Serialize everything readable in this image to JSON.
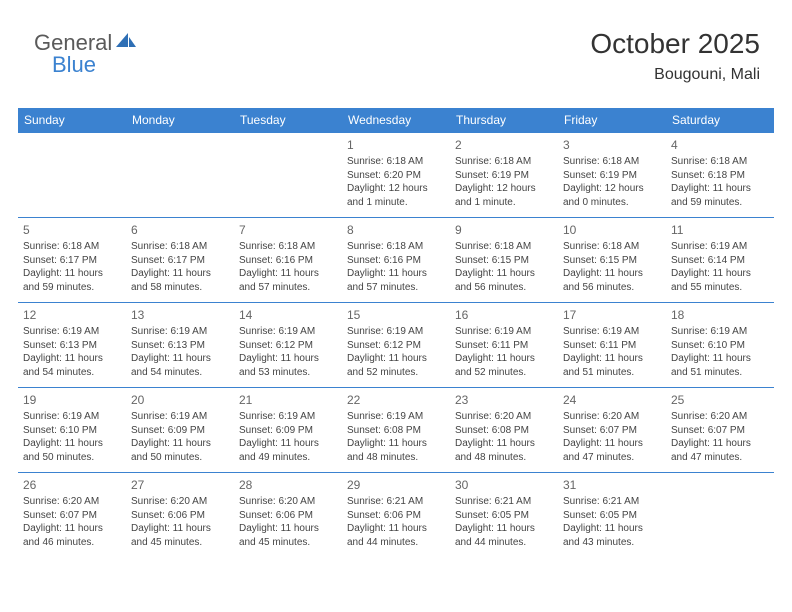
{
  "logo": {
    "part1": "General",
    "part2": "Blue"
  },
  "title": "October 2025",
  "location": "Bougouni, Mali",
  "colors": {
    "header_bg": "#3b82d0",
    "header_text": "#ffffff",
    "rule": "#3b82d0",
    "text": "#444444",
    "daynum": "#666666",
    "background": "#ffffff"
  },
  "dayNames": [
    "Sunday",
    "Monday",
    "Tuesday",
    "Wednesday",
    "Thursday",
    "Friday",
    "Saturday"
  ],
  "weeks": [
    [
      null,
      null,
      null,
      {
        "n": "1",
        "sunrise": "6:18 AM",
        "sunset": "6:20 PM",
        "daylight": "12 hours and 1 minute."
      },
      {
        "n": "2",
        "sunrise": "6:18 AM",
        "sunset": "6:19 PM",
        "daylight": "12 hours and 1 minute."
      },
      {
        "n": "3",
        "sunrise": "6:18 AM",
        "sunset": "6:19 PM",
        "daylight": "12 hours and 0 minutes."
      },
      {
        "n": "4",
        "sunrise": "6:18 AM",
        "sunset": "6:18 PM",
        "daylight": "11 hours and 59 minutes."
      }
    ],
    [
      {
        "n": "5",
        "sunrise": "6:18 AM",
        "sunset": "6:17 PM",
        "daylight": "11 hours and 59 minutes."
      },
      {
        "n": "6",
        "sunrise": "6:18 AM",
        "sunset": "6:17 PM",
        "daylight": "11 hours and 58 minutes."
      },
      {
        "n": "7",
        "sunrise": "6:18 AM",
        "sunset": "6:16 PM",
        "daylight": "11 hours and 57 minutes."
      },
      {
        "n": "8",
        "sunrise": "6:18 AM",
        "sunset": "6:16 PM",
        "daylight": "11 hours and 57 minutes."
      },
      {
        "n": "9",
        "sunrise": "6:18 AM",
        "sunset": "6:15 PM",
        "daylight": "11 hours and 56 minutes."
      },
      {
        "n": "10",
        "sunrise": "6:18 AM",
        "sunset": "6:15 PM",
        "daylight": "11 hours and 56 minutes."
      },
      {
        "n": "11",
        "sunrise": "6:19 AM",
        "sunset": "6:14 PM",
        "daylight": "11 hours and 55 minutes."
      }
    ],
    [
      {
        "n": "12",
        "sunrise": "6:19 AM",
        "sunset": "6:13 PM",
        "daylight": "11 hours and 54 minutes."
      },
      {
        "n": "13",
        "sunrise": "6:19 AM",
        "sunset": "6:13 PM",
        "daylight": "11 hours and 54 minutes."
      },
      {
        "n": "14",
        "sunrise": "6:19 AM",
        "sunset": "6:12 PM",
        "daylight": "11 hours and 53 minutes."
      },
      {
        "n": "15",
        "sunrise": "6:19 AM",
        "sunset": "6:12 PM",
        "daylight": "11 hours and 52 minutes."
      },
      {
        "n": "16",
        "sunrise": "6:19 AM",
        "sunset": "6:11 PM",
        "daylight": "11 hours and 52 minutes."
      },
      {
        "n": "17",
        "sunrise": "6:19 AM",
        "sunset": "6:11 PM",
        "daylight": "11 hours and 51 minutes."
      },
      {
        "n": "18",
        "sunrise": "6:19 AM",
        "sunset": "6:10 PM",
        "daylight": "11 hours and 51 minutes."
      }
    ],
    [
      {
        "n": "19",
        "sunrise": "6:19 AM",
        "sunset": "6:10 PM",
        "daylight": "11 hours and 50 minutes."
      },
      {
        "n": "20",
        "sunrise": "6:19 AM",
        "sunset": "6:09 PM",
        "daylight": "11 hours and 50 minutes."
      },
      {
        "n": "21",
        "sunrise": "6:19 AM",
        "sunset": "6:09 PM",
        "daylight": "11 hours and 49 minutes."
      },
      {
        "n": "22",
        "sunrise": "6:19 AM",
        "sunset": "6:08 PM",
        "daylight": "11 hours and 48 minutes."
      },
      {
        "n": "23",
        "sunrise": "6:20 AM",
        "sunset": "6:08 PM",
        "daylight": "11 hours and 48 minutes."
      },
      {
        "n": "24",
        "sunrise": "6:20 AM",
        "sunset": "6:07 PM",
        "daylight": "11 hours and 47 minutes."
      },
      {
        "n": "25",
        "sunrise": "6:20 AM",
        "sunset": "6:07 PM",
        "daylight": "11 hours and 47 minutes."
      }
    ],
    [
      {
        "n": "26",
        "sunrise": "6:20 AM",
        "sunset": "6:07 PM",
        "daylight": "11 hours and 46 minutes."
      },
      {
        "n": "27",
        "sunrise": "6:20 AM",
        "sunset": "6:06 PM",
        "daylight": "11 hours and 45 minutes."
      },
      {
        "n": "28",
        "sunrise": "6:20 AM",
        "sunset": "6:06 PM",
        "daylight": "11 hours and 45 minutes."
      },
      {
        "n": "29",
        "sunrise": "6:21 AM",
        "sunset": "6:06 PM",
        "daylight": "11 hours and 44 minutes."
      },
      {
        "n": "30",
        "sunrise": "6:21 AM",
        "sunset": "6:05 PM",
        "daylight": "11 hours and 44 minutes."
      },
      {
        "n": "31",
        "sunrise": "6:21 AM",
        "sunset": "6:05 PM",
        "daylight": "11 hours and 43 minutes."
      },
      null
    ]
  ],
  "labels": {
    "sunrise": "Sunrise:",
    "sunset": "Sunset:",
    "daylight": "Daylight:"
  }
}
